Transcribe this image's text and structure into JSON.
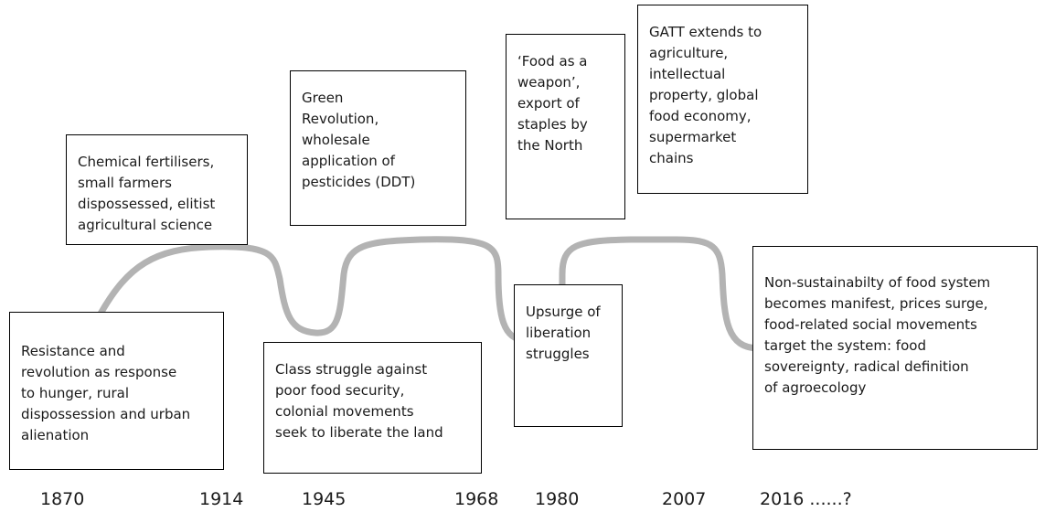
{
  "boxes": [
    {
      "lines": [
        "Resistance and",
        "revolution as response",
        "to hunger, rural",
        "dispossession and urban",
        "alienation"
      ]
    },
    {
      "lines": [
        "Chemical fertilisers,",
        "small farmers",
        "dispossessed, elitist",
        "agricultural science"
      ]
    },
    {
      "lines": [
        "Green",
        "Revolution,",
        "wholesale",
        "application of",
        "pesticides (DDT)"
      ]
    },
    {
      "lines": [
        "‘Food as a",
        "weapon’,",
        "export of",
        "staples by",
        "the North"
      ]
    },
    {
      "lines": [
        "GATT extends to",
        "agriculture,",
        "intellectual",
        "property, global",
        "food economy,",
        "supermarket",
        "chains"
      ]
    },
    {
      "lines": [
        "Class struggle against",
        "poor food security,",
        "colonial movements",
        "seek to liberate the land"
      ]
    },
    {
      "lines": [
        "Upsurge of",
        "liberation",
        "struggles"
      ]
    },
    {
      "lines": [
        "Non-sustainabilty of food system",
        "becomes manifest, prices surge,",
        "food-related social movements",
        "target the system: food",
        "sovereignty, radical definition",
        "of agroecology"
      ]
    }
  ],
  "years": [
    "1870",
    "1914",
    "1945",
    "1968",
    "1980",
    "2007",
    "2016 ......?"
  ]
}
